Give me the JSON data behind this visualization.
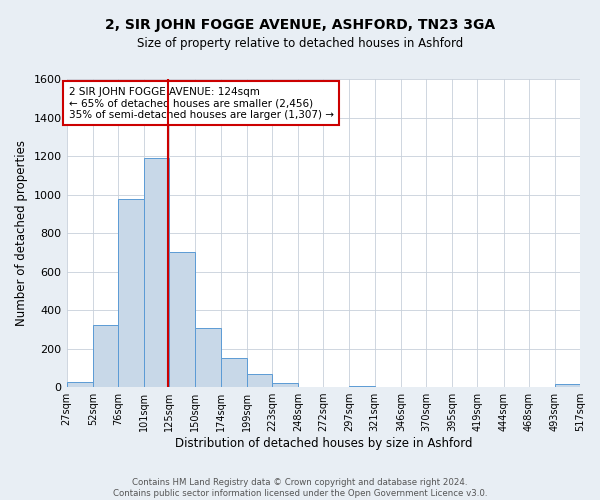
{
  "title": "2, SIR JOHN FOGGE AVENUE, ASHFORD, TN23 3GA",
  "subtitle": "Size of property relative to detached houses in Ashford",
  "xlabel": "Distribution of detached houses by size in Ashford",
  "ylabel": "Number of detached properties",
  "bar_edges": [
    27,
    52,
    76,
    101,
    125,
    150,
    174,
    199,
    223,
    248,
    272,
    297,
    321,
    346,
    370,
    395,
    419,
    444,
    468,
    493,
    517
  ],
  "bar_heights": [
    25,
    325,
    975,
    1190,
    700,
    305,
    150,
    70,
    20,
    0,
    0,
    5,
    0,
    0,
    0,
    0,
    0,
    0,
    0,
    15
  ],
  "bar_color": "#c8d8e8",
  "bar_edge_color": "#5b9bd5",
  "vline_x": 124,
  "vline_color": "#cc0000",
  "ylim": [
    0,
    1600
  ],
  "yticks": [
    0,
    200,
    400,
    600,
    800,
    1000,
    1200,
    1400,
    1600
  ],
  "tick_labels": [
    "27sqm",
    "52sqm",
    "76sqm",
    "101sqm",
    "125sqm",
    "150sqm",
    "174sqm",
    "199sqm",
    "223sqm",
    "248sqm",
    "272sqm",
    "297sqm",
    "321sqm",
    "346sqm",
    "370sqm",
    "395sqm",
    "419sqm",
    "444sqm",
    "468sqm",
    "493sqm",
    "517sqm"
  ],
  "annotation_lines": [
    "2 SIR JOHN FOGGE AVENUE: 124sqm",
    "← 65% of detached houses are smaller (2,456)",
    "35% of semi-detached houses are larger (1,307) →"
  ],
  "footer_lines": [
    "Contains HM Land Registry data © Crown copyright and database right 2024.",
    "Contains public sector information licensed under the Open Government Licence v3.0."
  ],
  "bg_color": "#e8eef4",
  "plot_bg_color": "#ffffff",
  "grid_color": "#c8d0da"
}
